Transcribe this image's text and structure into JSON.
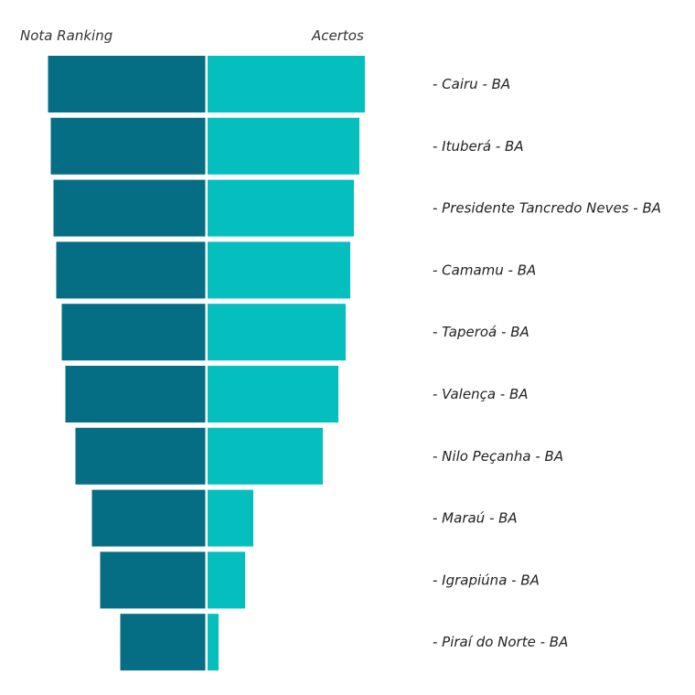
{
  "chart_data": {
    "type": "bar",
    "orientation": "horizontal-diverging",
    "title": "",
    "series": [
      {
        "name": "Nota Ranking",
        "color": "#066e84",
        "values": [
          172,
          169,
          166,
          163,
          157,
          153,
          142,
          124,
          115,
          93
        ]
      },
      {
        "name": "Acertos",
        "color": "#05bfbf",
        "values": [
          172,
          166,
          160,
          156,
          151,
          143,
          126,
          50,
          41,
          12
        ]
      }
    ],
    "categories": [
      "- Cairu - BA",
      "- Ituberá - BA",
      "- Presidente Tancredo Neves - BA",
      "- Camamu - BA",
      "- Taperoá - BA",
      "- Valença - BA",
      "- Nilo Peçanha - BA",
      "- Maraú - BA",
      "- Igrapiúna - BA",
      "- Piraí do Norte - BA"
    ],
    "value_scale": "relative (no axis shown)",
    "grid": false
  }
}
